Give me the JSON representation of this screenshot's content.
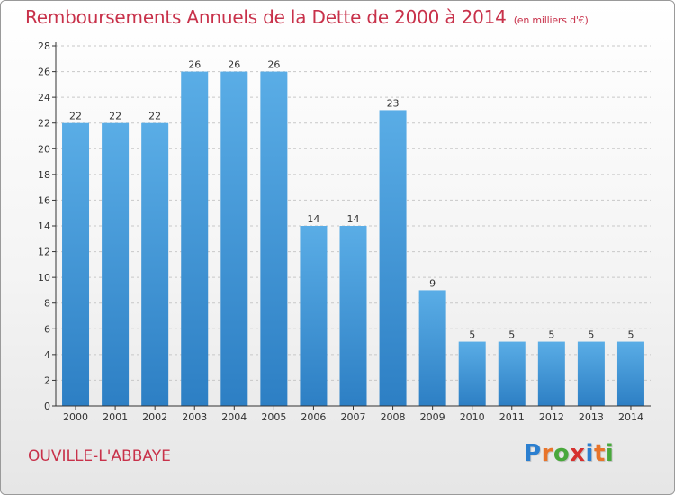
{
  "title": "Remboursements Annuels de la Dette de 2000 à 2014",
  "title_unit": "(en milliers d'€)",
  "commune": "OUVILLE-L'ABBAYE",
  "logo": {
    "letters": [
      "P",
      "r",
      "o",
      "x",
      "i",
      "t",
      "i"
    ],
    "colors": [
      "#2b7fd0",
      "#e8742a",
      "#49a83c",
      "#d6312f",
      "#2b7fd0",
      "#e8742a",
      "#49a83c"
    ]
  },
  "colors": {
    "bar_top": "#5aade6",
    "bar_bottom": "#2d7fc4",
    "grid": "#c8c8c8",
    "axis": "#333333"
  },
  "chart_data": {
    "type": "bar",
    "categories": [
      "2000",
      "2001",
      "2002",
      "2003",
      "2004",
      "2005",
      "2006",
      "2007",
      "2008",
      "2009",
      "2010",
      "2011",
      "2012",
      "2013",
      "2014"
    ],
    "values": [
      22,
      22,
      22,
      26,
      26,
      26,
      14,
      14,
      23,
      9,
      5,
      5,
      5,
      5,
      5
    ],
    "data_labels": [
      "22",
      "22",
      "22",
      "26",
      "26",
      "26",
      "14",
      "14",
      "23",
      "9",
      "5",
      "5",
      "5",
      "5",
      "5"
    ],
    "y_ticks": [
      "0",
      "2",
      "4",
      "6",
      "8",
      "10",
      "12",
      "14",
      "16",
      "18",
      "20",
      "22",
      "24",
      "26",
      "28"
    ],
    "ylim": [
      0,
      28
    ],
    "grid": true
  }
}
